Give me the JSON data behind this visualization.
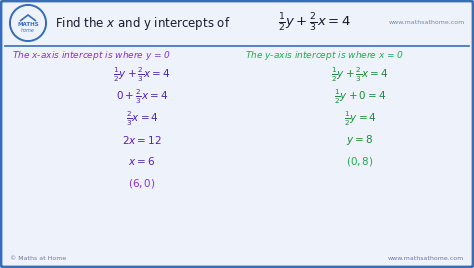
{
  "bg_color": "#eef2fa",
  "border_color": "#3a6db5",
  "title_text_plain": "Find the ",
  "title_color": "#1a1a2e",
  "left_header": "The $x$-axis intercept is where y = 0",
  "right_header": "The $y$-axis intercept is where $x$ = 0",
  "header_color_left": "#8833cc",
  "header_color_right": "#22aa55",
  "step_color_left": "#5522aa",
  "step_color_right": "#1e8c3a",
  "answer_color_left": "#8833cc",
  "answer_color_right": "#22aa55",
  "footer_left": "© Maths at Home",
  "footer_right": "www.mathsathome.com",
  "footer_color": "#777799",
  "logo_bg": "#3a6db5",
  "logo_border": "#aabbdd"
}
